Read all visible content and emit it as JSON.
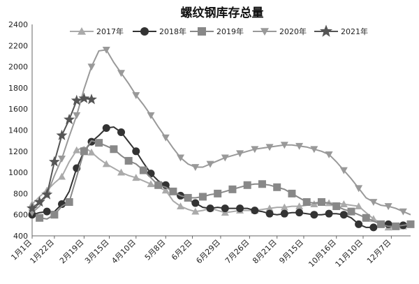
{
  "chart_data": {
    "type": "line",
    "title": "螺纹钢库存总量",
    "xlabel": "",
    "ylabel": "",
    "ylim": [
      400,
      2400
    ],
    "y_ticks": [
      400,
      600,
      800,
      1000,
      1200,
      1400,
      1600,
      1800,
      2000,
      2200,
      2400
    ],
    "x_ticks": [
      {
        "label": "1月1日",
        "week": 0
      },
      {
        "label": "1月22日",
        "week": 3
      },
      {
        "label": "2月19日",
        "week": 7
      },
      {
        "label": "3月15日",
        "week": 10.4
      },
      {
        "label": "4月10日",
        "week": 14
      },
      {
        "label": "5月8日",
        "week": 18
      },
      {
        "label": "6月2日",
        "week": 21.6
      },
      {
        "label": "6月29日",
        "week": 25.4
      },
      {
        "label": "7月26日",
        "week": 29.3
      },
      {
        "label": "8月21日",
        "week": 33
      },
      {
        "label": "9月15日",
        "week": 36.6
      },
      {
        "label": "10月16日",
        "week": 41
      },
      {
        "label": "11月10日",
        "week": 44.6
      },
      {
        "label": "12月7日",
        "week": 48.4
      }
    ],
    "legend_position": "top",
    "grid": false,
    "series": [
      {
        "name": "2017年",
        "marker": "triangle",
        "color": "#aaaaaa",
        "x": [
          0,
          1,
          2,
          3,
          4,
          5,
          6,
          7,
          8,
          9,
          10,
          11,
          12,
          13,
          14,
          15,
          16,
          17,
          18,
          19,
          20,
          21,
          22,
          23,
          24,
          25,
          26,
          27,
          28,
          29,
          30,
          31,
          32,
          33,
          34,
          35,
          36,
          37,
          38,
          39,
          40,
          41,
          42,
          43,
          44,
          45,
          46,
          47,
          48,
          49,
          50,
          51
        ],
        "y": [
          700,
          770,
          830,
          900,
          960,
          1100,
          1210,
          1240,
          1190,
          1130,
          1080,
          1040,
          1000,
          970,
          950,
          920,
          890,
          860,
          830,
          730,
          680,
          650,
          630,
          640,
          660,
          640,
          620,
          630,
          640,
          640,
          640,
          650,
          660,
          670,
          670,
          680,
          680,
          690,
          700,
          710,
          710,
          710,
          700,
          690,
          680,
          620,
          560,
          520,
          480,
          470,
          490,
          500
        ]
      },
      {
        "name": "2018年",
        "marker": "circle",
        "color": "#333333",
        "x": [
          0,
          1,
          2,
          3,
          4,
          5,
          6,
          7,
          8,
          9,
          10,
          11,
          12,
          13,
          14,
          15,
          16,
          17,
          18,
          19,
          20,
          21,
          22,
          23,
          24,
          25,
          26,
          27,
          28,
          29,
          30,
          31,
          32,
          33,
          34,
          35,
          36,
          37,
          38,
          39,
          40,
          41,
          42,
          43,
          44,
          45,
          46,
          47,
          48,
          49,
          50,
          51
        ],
        "y": [
          600,
          620,
          630,
          630,
          700,
          820,
          1040,
          1200,
          1290,
          1350,
          1420,
          1430,
          1380,
          1290,
          1200,
          1090,
          990,
          920,
          880,
          820,
          780,
          740,
          710,
          670,
          660,
          670,
          660,
          660,
          660,
          660,
          640,
          630,
          610,
          600,
          610,
          620,
          620,
          610,
          600,
          600,
          610,
          610,
          600,
          570,
          510,
          480,
          480,
          490,
          510,
          510,
          500,
          500
        ]
      },
      {
        "name": "2019年",
        "marker": "square",
        "color": "#888888",
        "x": [
          1,
          2,
          3,
          4,
          5,
          6,
          7,
          8,
          9,
          10,
          11,
          12,
          13,
          14,
          15,
          16,
          17,
          18,
          19,
          20,
          21,
          22,
          23,
          24,
          25,
          26,
          27,
          28,
          29,
          30,
          31,
          32,
          33,
          34,
          35,
          36,
          37,
          38,
          39,
          40,
          41,
          42,
          43,
          44,
          45,
          46,
          47,
          48,
          49,
          50,
          51
        ],
        "y": [
          570,
          560,
          600,
          680,
          720,
          960,
          1200,
          1300,
          1280,
          1250,
          1220,
          1160,
          1110,
          1080,
          1020,
          950,
          880,
          860,
          820,
          780,
          760,
          760,
          770,
          790,
          800,
          820,
          840,
          860,
          880,
          890,
          890,
          880,
          860,
          840,
          800,
          760,
          720,
          710,
          720,
          710,
          680,
          650,
          630,
          600,
          570,
          540,
          510,
          490,
          490,
          500,
          510
        ]
      },
      {
        "name": "2020年",
        "marker": "triangle-down",
        "color": "#999999",
        "x": [
          0,
          1,
          2,
          3,
          4,
          5,
          6,
          7,
          8,
          9,
          10,
          11,
          12,
          13,
          14,
          15,
          16,
          17,
          18,
          19,
          20,
          21,
          22,
          23,
          24,
          25,
          26,
          27,
          28,
          29,
          30,
          31,
          32,
          33,
          34,
          35,
          36,
          37,
          38,
          39,
          40,
          41,
          42,
          43,
          44,
          45,
          46,
          47,
          48,
          49,
          50,
          51
        ],
        "y": [
          620,
          680,
          790,
          970,
          1130,
          1340,
          1540,
          1790,
          2000,
          2150,
          2160,
          2040,
          1940,
          1840,
          1730,
          1640,
          1540,
          1430,
          1330,
          1230,
          1140,
          1080,
          1050,
          1050,
          1080,
          1110,
          1140,
          1160,
          1180,
          1200,
          1220,
          1230,
          1240,
          1250,
          1260,
          1260,
          1250,
          1240,
          1220,
          1200,
          1170,
          1100,
          1020,
          940,
          850,
          760,
          720,
          690,
          680,
          660,
          630,
          600
        ]
      },
      {
        "name": "2021年",
        "marker": "star",
        "color": "#555555",
        "x": [
          0,
          1,
          2,
          3,
          4,
          5,
          6,
          7,
          8
        ],
        "y": [
          660,
          720,
          790,
          1100,
          1350,
          1500,
          1680,
          1700,
          1690
        ]
      }
    ]
  }
}
